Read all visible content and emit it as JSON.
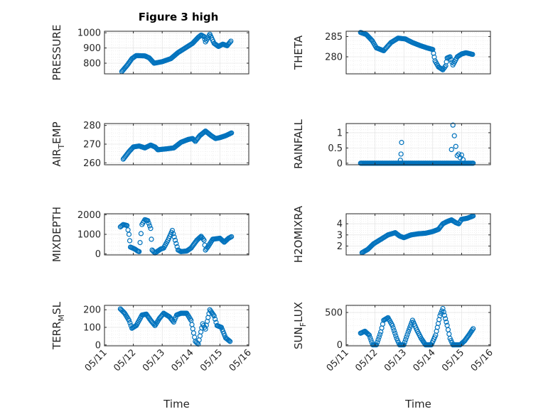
{
  "figure": {
    "title": "Figure 3 high"
  },
  "chart_data": [
    {
      "id": "pressure",
      "type": "scatter",
      "title": "Figure 3 high",
      "ylabel": "PRESSURE",
      "ylim": [
        730,
        1010
      ],
      "yticks": [
        800,
        900,
        1000
      ],
      "xlim": [
        0,
        5
      ],
      "xticks": [
        0,
        1,
        2,
        3,
        4,
        5
      ],
      "xticklabels": [
        "05/11",
        "05/12",
        "05/13",
        "05/14",
        "05/15",
        "05/16"
      ],
      "xlabel": "",
      "grid": true,
      "marker_color": "#0072BD",
      "keypoints": [
        [
          0.6,
          745
        ],
        [
          0.8,
          790
        ],
        [
          0.95,
          830
        ],
        [
          1.1,
          850
        ],
        [
          1.4,
          848
        ],
        [
          1.55,
          835
        ],
        [
          1.72,
          800
        ],
        [
          2.0,
          810
        ],
        [
          2.3,
          830
        ],
        [
          2.55,
          870
        ],
        [
          2.8,
          900
        ],
        [
          3.05,
          930
        ],
        [
          3.25,
          970
        ],
        [
          3.35,
          985
        ],
        [
          3.45,
          975
        ],
        [
          3.5,
          940
        ],
        [
          3.65,
          990
        ],
        [
          3.8,
          930
        ],
        [
          3.95,
          910
        ],
        [
          4.1,
          925
        ],
        [
          4.25,
          915
        ],
        [
          4.38,
          945
        ]
      ]
    },
    {
      "id": "theta",
      "type": "scatter",
      "title": "",
      "ylabel": "THETA",
      "ylim": [
        275.8,
        286.3
      ],
      "yticks": [
        280,
        285
      ],
      "xlim": [
        0,
        5
      ],
      "xticks": [
        0,
        1,
        2,
        3,
        4,
        5
      ],
      "xticklabels": [
        "05/11",
        "05/12",
        "05/13",
        "05/14",
        "05/15",
        "05/16"
      ],
      "xlabel": "",
      "grid": true,
      "marker_color": "#0072BD",
      "keypoints": [
        [
          0.5,
          286
        ],
        [
          0.7,
          285.5
        ],
        [
          0.9,
          284
        ],
        [
          1.05,
          282.2
        ],
        [
          1.3,
          281.5
        ],
        [
          1.55,
          283.5
        ],
        [
          1.8,
          284.6
        ],
        [
          2.05,
          284.4
        ],
        [
          2.3,
          283.5
        ],
        [
          2.55,
          282.8
        ],
        [
          2.8,
          282.2
        ],
        [
          3.0,
          281.8
        ],
        [
          3.08,
          279
        ],
        [
          3.2,
          277.5
        ],
        [
          3.35,
          276.8
        ],
        [
          3.45,
          277.8
        ],
        [
          3.5,
          279.7
        ],
        [
          3.6,
          280
        ],
        [
          3.7,
          278
        ],
        [
          3.85,
          280
        ],
        [
          4.0,
          280.7
        ],
        [
          4.15,
          281
        ],
        [
          4.38,
          280.6
        ]
      ]
    },
    {
      "id": "air_temp",
      "type": "scatter",
      "title": "",
      "ylabel": "AIR_TEMP",
      "ylabel_main": "AIR",
      "ylabel_sub": "T",
      "ylabel_tail": "EMP",
      "ylim": [
        259,
        281
      ],
      "yticks": [
        260,
        270,
        280
      ],
      "xlim": [
        0,
        5
      ],
      "xticks": [
        0,
        1,
        2,
        3,
        4,
        5
      ],
      "xticklabels": [
        "05/11",
        "05/12",
        "05/13",
        "05/14",
        "05/15",
        "05/16"
      ],
      "xlabel": "",
      "grid": true,
      "marker_color": "#0072BD",
      "keypoints": [
        [
          0.65,
          262
        ],
        [
          0.85,
          266
        ],
        [
          1.0,
          268.5
        ],
        [
          1.2,
          269
        ],
        [
          1.4,
          268
        ],
        [
          1.6,
          269.5
        ],
        [
          1.75,
          268.5
        ],
        [
          1.85,
          267
        ],
        [
          2.15,
          267.5
        ],
        [
          2.4,
          268
        ],
        [
          2.65,
          271
        ],
        [
          2.9,
          272.5
        ],
        [
          3.05,
          273
        ],
        [
          3.15,
          271.5
        ],
        [
          3.3,
          274.5
        ],
        [
          3.5,
          277
        ],
        [
          3.7,
          274.5
        ],
        [
          3.85,
          273
        ],
        [
          4.0,
          273.5
        ],
        [
          4.2,
          274.5
        ],
        [
          4.4,
          276
        ]
      ]
    },
    {
      "id": "rainfall",
      "type": "scatter",
      "title": "",
      "ylabel": "RAINFALL",
      "ylim": [
        -0.05,
        1.3
      ],
      "yticks": [
        0,
        0.5,
        1
      ],
      "xlim": [
        0,
        5
      ],
      "xticks": [
        0,
        1,
        2,
        3,
        4,
        5
      ],
      "xticklabels": [
        "05/11",
        "05/12",
        "05/13",
        "05/14",
        "05/15",
        "05/16"
      ],
      "xlabel": "",
      "grid": true,
      "marker_color": "#0072BD",
      "baseline_range": [
        0.5,
        4.4
      ],
      "baseline_value": 0,
      "spikes": [
        [
          1.88,
          0.1
        ],
        [
          1.9,
          0.3
        ],
        [
          1.92,
          0.68
        ],
        [
          3.65,
          0.45
        ],
        [
          3.7,
          1.25
        ],
        [
          3.75,
          0.9
        ],
        [
          3.8,
          0.55
        ],
        [
          3.85,
          0.25
        ],
        [
          3.9,
          0.3
        ],
        [
          3.95,
          0.18
        ],
        [
          4.0,
          0.27
        ],
        [
          4.05,
          0.12
        ]
      ]
    },
    {
      "id": "mixdepth",
      "type": "scatter",
      "title": "",
      "ylabel": "MIXDEPTH",
      "ylim": [
        -50,
        2050
      ],
      "yticks": [
        0,
        1000,
        2000
      ],
      "xlim": [
        0,
        5
      ],
      "xticks": [
        0,
        1,
        2,
        3,
        4,
        5
      ],
      "xticklabels": [
        "05/11",
        "05/12",
        "05/13",
        "05/14",
        "05/15",
        "05/16"
      ],
      "xlabel": "",
      "grid": true,
      "marker_color": "#0072BD",
      "keypoints": [
        [
          0.55,
          1380
        ],
        [
          0.65,
          1500
        ],
        [
          0.78,
          1450
        ],
        [
          0.85,
          1000
        ],
        [
          0.9,
          350
        ],
        [
          1.05,
          250
        ],
        [
          1.15,
          150
        ],
        [
          1.2,
          120
        ],
        [
          1.3,
          1500
        ],
        [
          1.4,
          1750
        ],
        [
          1.5,
          1700
        ],
        [
          1.6,
          1300
        ],
        [
          1.65,
          200
        ],
        [
          1.75,
          50
        ],
        [
          1.85,
          150
        ],
        [
          1.95,
          250
        ],
        [
          2.05,
          300
        ],
        [
          2.2,
          700
        ],
        [
          2.35,
          1200
        ],
        [
          2.45,
          700
        ],
        [
          2.55,
          200
        ],
        [
          2.65,
          120
        ],
        [
          2.85,
          150
        ],
        [
          3.0,
          300
        ],
        [
          3.2,
          700
        ],
        [
          3.35,
          900
        ],
        [
          3.45,
          700
        ],
        [
          3.5,
          200
        ],
        [
          3.6,
          400
        ],
        [
          3.75,
          750
        ],
        [
          4.0,
          800
        ],
        [
          4.15,
          600
        ],
        [
          4.3,
          800
        ],
        [
          4.4,
          880
        ]
      ]
    },
    {
      "id": "h2omixra",
      "type": "scatter",
      "title": "",
      "ylabel": "H2OMIXRA",
      "ylim": [
        1.2,
        4.9
      ],
      "yticks": [
        2,
        3,
        4
      ],
      "xlim": [
        0,
        5
      ],
      "xticks": [
        0,
        1,
        2,
        3,
        4,
        5
      ],
      "xticklabels": [
        "05/11",
        "05/12",
        "05/13",
        "05/14",
        "05/15",
        "05/16"
      ],
      "xlabel": "",
      "grid": true,
      "marker_color": "#0072BD",
      "keypoints": [
        [
          0.55,
          1.4
        ],
        [
          0.75,
          1.7
        ],
        [
          0.95,
          2.2
        ],
        [
          1.2,
          2.6
        ],
        [
          1.45,
          3.0
        ],
        [
          1.7,
          3.2
        ],
        [
          1.85,
          2.9
        ],
        [
          2.0,
          2.75
        ],
        [
          2.25,
          3.0
        ],
        [
          2.5,
          3.1
        ],
        [
          2.75,
          3.15
        ],
        [
          3.0,
          3.3
        ],
        [
          3.2,
          3.5
        ],
        [
          3.35,
          4.0
        ],
        [
          3.5,
          4.2
        ],
        [
          3.65,
          4.35
        ],
        [
          3.8,
          4.1
        ],
        [
          3.9,
          4.0
        ],
        [
          4.0,
          4.4
        ],
        [
          4.2,
          4.5
        ],
        [
          4.4,
          4.7
        ]
      ]
    },
    {
      "id": "terr_msl",
      "type": "scatter",
      "title": "",
      "ylabel": "TERR_MSL",
      "ylabel_main": "TERR",
      "ylabel_sub": "M",
      "ylabel_tail": "SL",
      "ylim": [
        -5,
        225
      ],
      "yticks": [
        0,
        100,
        200
      ],
      "xlim": [
        0,
        5
      ],
      "xticks": [
        0,
        1,
        2,
        3,
        4,
        5
      ],
      "xticklabels": [
        "05/11",
        "05/12",
        "05/13",
        "05/14",
        "05/15",
        "05/16"
      ],
      "xlabel": "Time",
      "grid": true,
      "marker_color": "#0072BD",
      "keypoints": [
        [
          0.55,
          205
        ],
        [
          0.7,
          180
        ],
        [
          0.85,
          140
        ],
        [
          0.95,
          95
        ],
        [
          1.1,
          110
        ],
        [
          1.3,
          170
        ],
        [
          1.45,
          175
        ],
        [
          1.6,
          140
        ],
        [
          1.75,
          110
        ],
        [
          1.9,
          150
        ],
        [
          2.05,
          180
        ],
        [
          2.25,
          160
        ],
        [
          2.4,
          130
        ],
        [
          2.5,
          170
        ],
        [
          2.65,
          180
        ],
        [
          2.85,
          180
        ],
        [
          3.0,
          140
        ],
        [
          3.15,
          20
        ],
        [
          3.25,
          5
        ],
        [
          3.4,
          120
        ],
        [
          3.5,
          90
        ],
        [
          3.65,
          200
        ],
        [
          3.8,
          165
        ],
        [
          3.9,
          110
        ],
        [
          4.05,
          100
        ],
        [
          4.2,
          40
        ],
        [
          4.35,
          20
        ]
      ]
    },
    {
      "id": "sun_flux",
      "type": "scatter",
      "title": "",
      "ylabel": "SUN_FLUX",
      "ylabel_main": "SUN",
      "ylabel_sub": "F",
      "ylabel_tail": "LUX",
      "ylim": [
        -15,
        610
      ],
      "yticks": [
        0,
        500
      ],
      "xlim": [
        0,
        5
      ],
      "xticks": [
        0,
        1,
        2,
        3,
        4,
        5
      ],
      "xticklabels": [
        "05/11",
        "05/12",
        "05/13",
        "05/14",
        "05/15",
        "05/16"
      ],
      "xlabel": "Time",
      "grid": true,
      "marker_color": "#0072BD",
      "keypoints": [
        [
          0.5,
          180
        ],
        [
          0.65,
          210
        ],
        [
          0.8,
          150
        ],
        [
          0.92,
          0
        ],
        [
          1.05,
          0
        ],
        [
          1.2,
          200
        ],
        [
          1.3,
          380
        ],
        [
          1.45,
          420
        ],
        [
          1.6,
          300
        ],
        [
          1.75,
          100
        ],
        [
          1.85,
          0
        ],
        [
          2.0,
          0
        ],
        [
          2.15,
          200
        ],
        [
          2.3,
          380
        ],
        [
          2.45,
          230
        ],
        [
          2.6,
          100
        ],
        [
          2.75,
          0
        ],
        [
          2.95,
          0
        ],
        [
          3.1,
          150
        ],
        [
          3.25,
          450
        ],
        [
          3.35,
          560
        ],
        [
          3.5,
          300
        ],
        [
          3.6,
          100
        ],
        [
          3.7,
          0
        ],
        [
          3.85,
          0
        ],
        [
          3.95,
          0
        ],
        [
          4.1,
          60
        ],
        [
          4.25,
          150
        ],
        [
          4.4,
          250
        ]
      ]
    }
  ]
}
